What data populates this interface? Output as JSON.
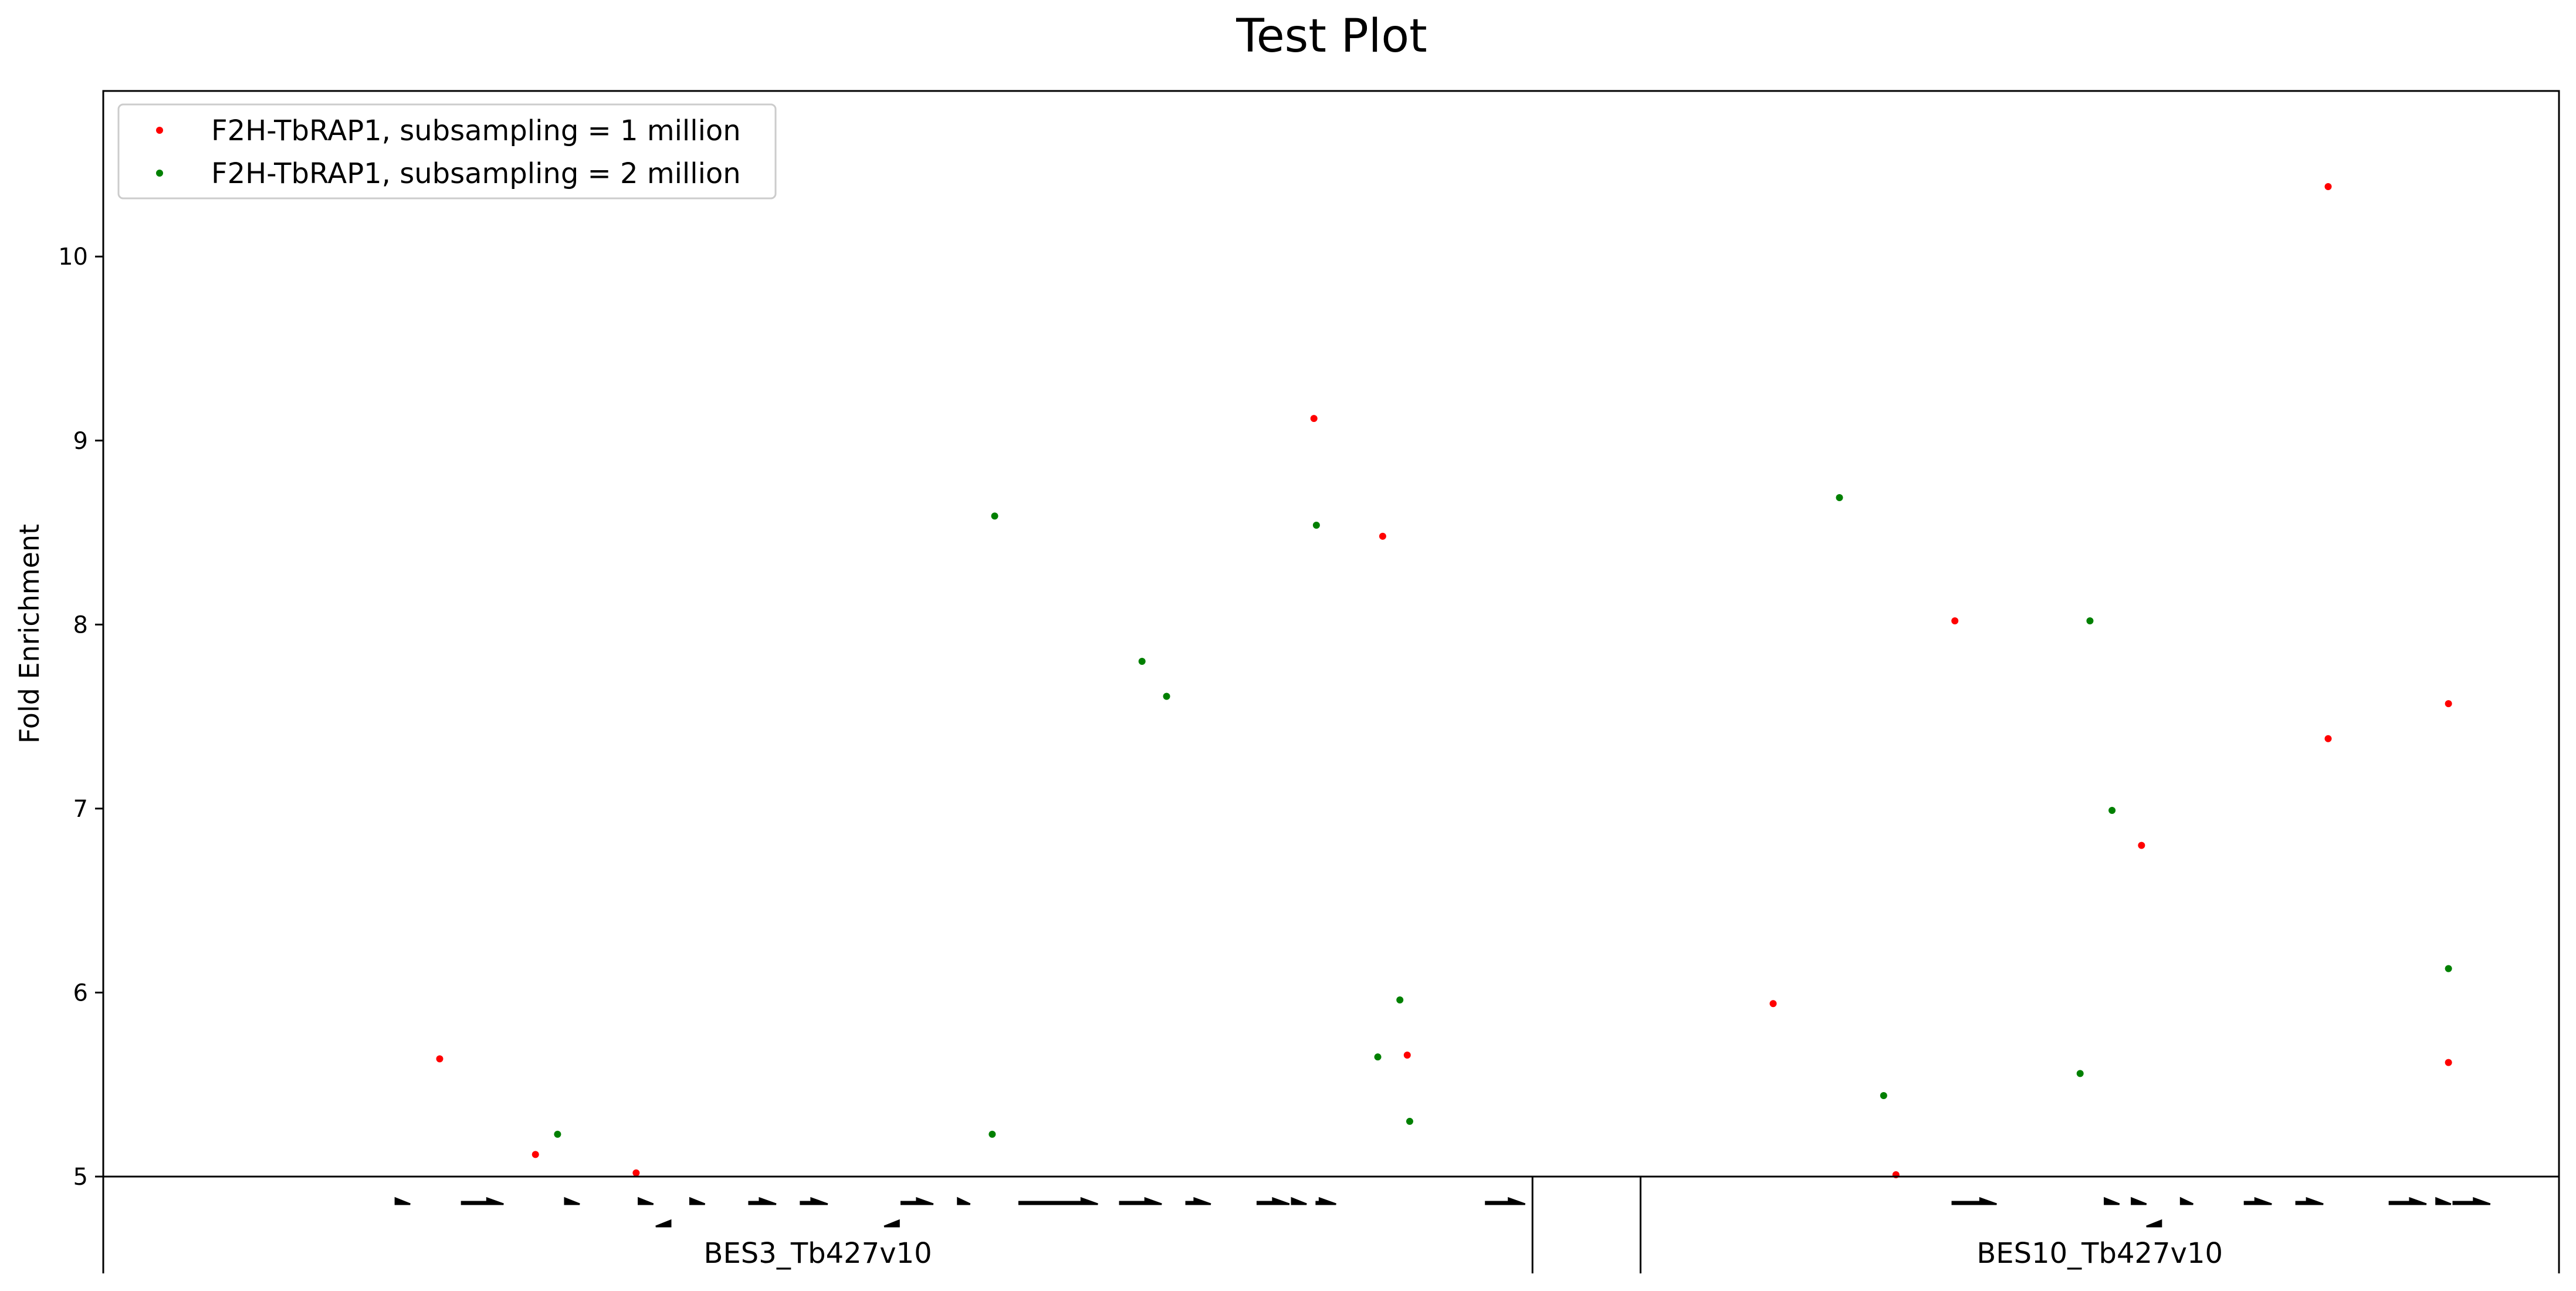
{
  "chart_data": {
    "type": "scatter",
    "title": "Test Plot",
    "xlabel": "",
    "ylabel": "Fold Enrichment",
    "xlim": [
      0,
      1000
    ],
    "ylim": [
      5,
      10.9
    ],
    "yticks": [
      5,
      6,
      7,
      8,
      9,
      10
    ],
    "grid": false,
    "legend_position": "top-left",
    "series": [
      {
        "name": "F2H-TbRAP1, subsampling = 1 million",
        "color": "#ff0000",
        "points": [
          {
            "x": 137,
            "y": 5.64
          },
          {
            "x": 176,
            "y": 5.12
          },
          {
            "x": 217,
            "y": 5.02
          },
          {
            "x": 493,
            "y": 9.12
          },
          {
            "x": 521,
            "y": 8.48
          },
          {
            "x": 531,
            "y": 5.66
          },
          {
            "x": 680,
            "y": 5.94
          },
          {
            "x": 730,
            "y": 5.01
          },
          {
            "x": 754,
            "y": 8.02
          },
          {
            "x": 830,
            "y": 6.8
          },
          {
            "x": 906,
            "y": 10.38
          },
          {
            "x": 906,
            "y": 7.38
          },
          {
            "x": 955,
            "y": 7.57
          },
          {
            "x": 955,
            "y": 5.62
          }
        ]
      },
      {
        "name": "F2H-TbRAP1, subsampling = 2 million",
        "color": "#008000",
        "points": [
          {
            "x": 185,
            "y": 5.23
          },
          {
            "x": 363,
            "y": 8.59
          },
          {
            "x": 362,
            "y": 5.23
          },
          {
            "x": 423,
            "y": 7.8
          },
          {
            "x": 433,
            "y": 7.61
          },
          {
            "x": 494,
            "y": 8.54
          },
          {
            "x": 519,
            "y": 5.65
          },
          {
            "x": 528,
            "y": 5.96
          },
          {
            "x": 532,
            "y": 5.3
          },
          {
            "x": 707,
            "y": 8.69
          },
          {
            "x": 725,
            "y": 5.44
          },
          {
            "x": 805,
            "y": 5.56
          },
          {
            "x": 809,
            "y": 8.02
          },
          {
            "x": 818,
            "y": 6.99
          },
          {
            "x": 955,
            "y": 6.13
          }
        ]
      }
    ],
    "regions": [
      {
        "label": "BES3_Tb427v10",
        "start": 0,
        "end": 582
      },
      {
        "label": "BES10_Tb427v10",
        "start": 626,
        "end": 1000
      }
    ],
    "genes": [
      {
        "start": 119,
        "end": 125,
        "strand": "+"
      },
      {
        "start": 146,
        "end": 163,
        "strand": "+"
      },
      {
        "start": 188,
        "end": 194,
        "strand": "+"
      },
      {
        "start": 218,
        "end": 224,
        "strand": "+"
      },
      {
        "start": 225,
        "end": 231,
        "strand": "-"
      },
      {
        "start": 239,
        "end": 245,
        "strand": "+"
      },
      {
        "start": 263,
        "end": 274,
        "strand": "+"
      },
      {
        "start": 284,
        "end": 295,
        "strand": "+"
      },
      {
        "start": 325,
        "end": 338,
        "strand": "+"
      },
      {
        "start": 318,
        "end": 324,
        "strand": "-"
      },
      {
        "start": 348,
        "end": 353,
        "strand": "+"
      },
      {
        "start": 373,
        "end": 405,
        "strand": "+"
      },
      {
        "start": 414,
        "end": 431,
        "strand": "+"
      },
      {
        "start": 441,
        "end": 451,
        "strand": "+"
      },
      {
        "start": 470,
        "end": 483,
        "strand": "+"
      },
      {
        "start": 484,
        "end": 490,
        "strand": "+"
      },
      {
        "start": 494,
        "end": 502,
        "strand": "+"
      },
      {
        "start": 563,
        "end": 579,
        "strand": "+"
      },
      {
        "start": 753,
        "end": 771,
        "strand": "+"
      },
      {
        "start": 815,
        "end": 821,
        "strand": "+"
      },
      {
        "start": 826,
        "end": 832,
        "strand": "+"
      },
      {
        "start": 832,
        "end": 838,
        "strand": "-"
      },
      {
        "start": 846,
        "end": 851,
        "strand": "+"
      },
      {
        "start": 872,
        "end": 883,
        "strand": "+"
      },
      {
        "start": 893,
        "end": 904,
        "strand": "+"
      },
      {
        "start": 931,
        "end": 946,
        "strand": "+"
      },
      {
        "start": 950,
        "end": 956,
        "strand": "+"
      },
      {
        "start": 957,
        "end": 972,
        "strand": "+"
      }
    ]
  }
}
